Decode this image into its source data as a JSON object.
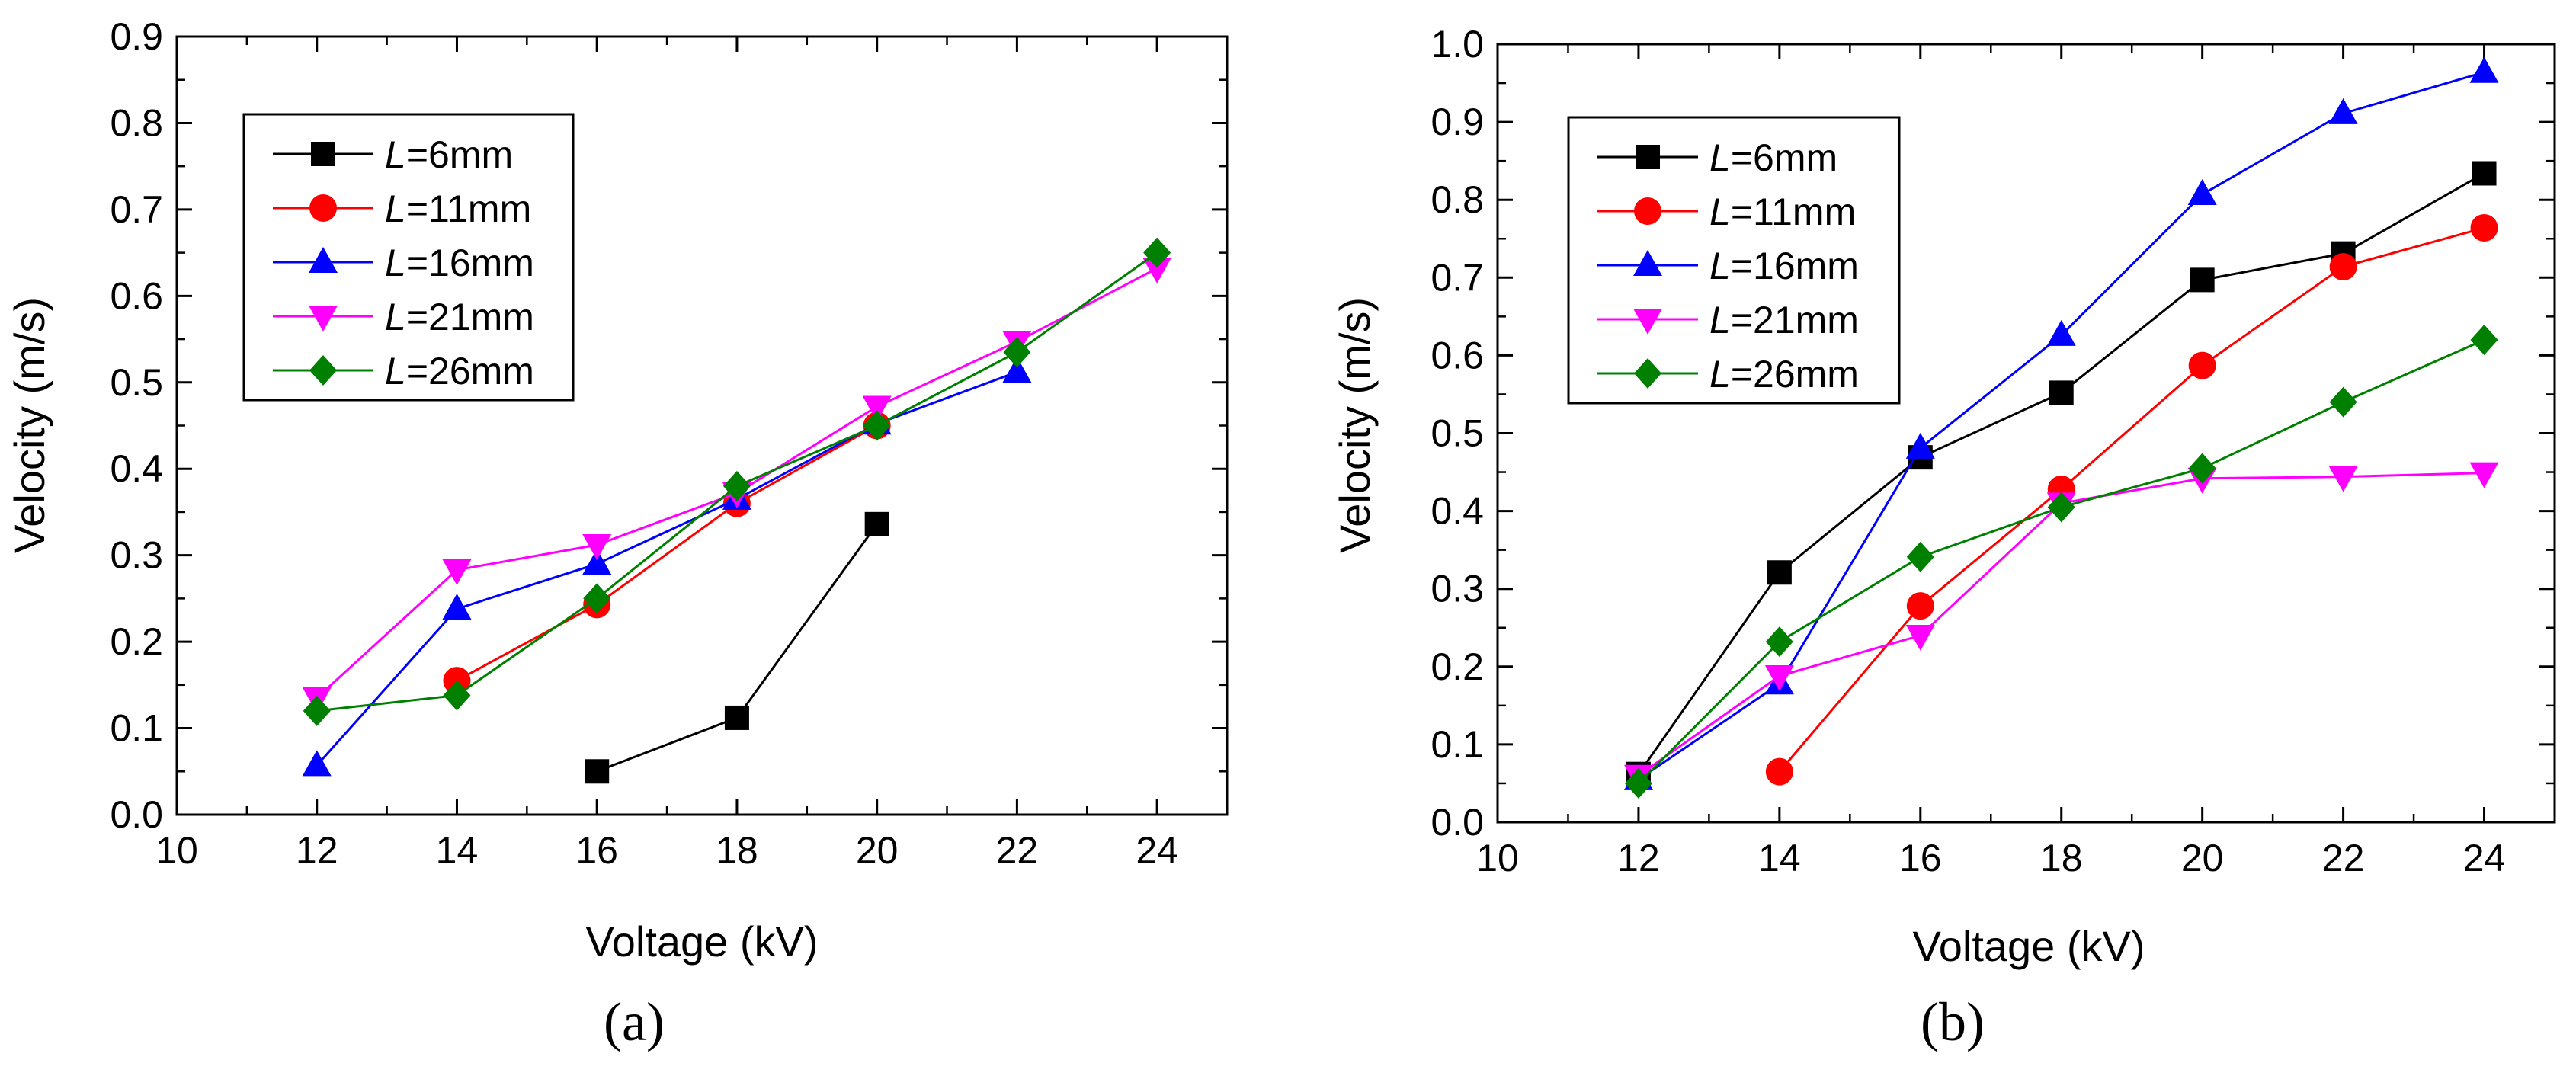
{
  "panels": [
    {
      "label": "(a)",
      "chart_data": {
        "type": "line",
        "xlabel": "Voltage (kV)",
        "ylabel": "Velocity (m/s)",
        "xlim": [
          10,
          25
        ],
        "ylim": [
          0,
          0.9
        ],
        "xticks": [
          "10",
          "12",
          "14",
          "16",
          "18",
          "20",
          "22",
          "24"
        ],
        "yticks": [
          "0.0",
          "0.1",
          "0.2",
          "0.3",
          "0.4",
          "0.5",
          "0.6",
          "0.7",
          "0.8",
          "0.9"
        ],
        "grid": false,
        "legend_position": "top-left",
        "series": [
          {
            "name": "L=6mm",
            "var": "L",
            "value": "=6mm",
            "color": "#000000",
            "marker": "square",
            "x": [
              16,
              18,
              20
            ],
            "y": [
              0.05,
              0.112,
              0.336
            ]
          },
          {
            "name": "L=11mm",
            "var": "L",
            "value": "=11mm",
            "color": "#ff0000",
            "marker": "circle",
            "x": [
              14,
              16,
              18,
              20
            ],
            "y": [
              0.155,
              0.243,
              0.36,
              0.45
            ]
          },
          {
            "name": "L=16mm",
            "var": "L",
            "value": "=16mm",
            "color": "#0000ff",
            "marker": "triangle-up",
            "x": [
              12,
              14,
              16,
              18,
              20,
              22
            ],
            "y": [
              0.057,
              0.238,
              0.29,
              0.365,
              0.452,
              0.512
            ]
          },
          {
            "name": "L=21mm",
            "var": "L",
            "value": "=21mm",
            "color": "#ff00ff",
            "marker": "triangle-down",
            "x": [
              12,
              14,
              16,
              18,
              20,
              22,
              24
            ],
            "y": [
              0.135,
              0.283,
              0.312,
              0.372,
              0.472,
              0.547,
              0.632
            ]
          },
          {
            "name": "L=26mm",
            "var": "L",
            "value": "=26mm",
            "color": "#008000",
            "marker": "diamond",
            "x": [
              12,
              14,
              16,
              18,
              20,
              22,
              24
            ],
            "y": [
              0.12,
              0.138,
              0.25,
              0.38,
              0.45,
              0.535,
              0.65
            ]
          }
        ]
      }
    },
    {
      "label": "(b)",
      "chart_data": {
        "type": "line",
        "xlabel": "Voltage (kV)",
        "ylabel": "Velocity (m/s)",
        "xlim": [
          10,
          25
        ],
        "ylim": [
          0,
          1.0
        ],
        "xticks": [
          "10",
          "12",
          "14",
          "16",
          "18",
          "20",
          "22",
          "24"
        ],
        "yticks": [
          "0.0",
          "0.1",
          "0.2",
          "0.3",
          "0.4",
          "0.5",
          "0.6",
          "0.7",
          "0.8",
          "0.9",
          "1.0"
        ],
        "grid": false,
        "legend_position": "top-left",
        "series": [
          {
            "name": "L=6mm",
            "var": "L",
            "value": "=6mm",
            "color": "#000000",
            "marker": "square",
            "x": [
              12,
              14,
              16,
              18,
              20,
              22,
              24
            ],
            "y": [
              0.062,
              0.321,
              0.469,
              0.552,
              0.697,
              0.731,
              0.834
            ]
          },
          {
            "name": "L=11mm",
            "var": "L",
            "value": "=11mm",
            "color": "#ff0000",
            "marker": "circle",
            "x": [
              14,
              16,
              18,
              20,
              22,
              24
            ],
            "y": [
              0.065,
              0.278,
              0.428,
              0.587,
              0.714,
              0.764
            ]
          },
          {
            "name": "L=16mm",
            "var": "L",
            "value": "=16mm",
            "color": "#0000ff",
            "marker": "triangle-up",
            "x": [
              12,
              14,
              16,
              18,
              20,
              22,
              24
            ],
            "y": [
              0.055,
              0.178,
              0.481,
              0.626,
              0.807,
              0.911,
              0.964
            ]
          },
          {
            "name": "L=21mm",
            "var": "L",
            "value": "=21mm",
            "color": "#ff00ff",
            "marker": "triangle-down",
            "x": [
              12,
              14,
              16,
              18,
              20,
              22,
              24
            ],
            "y": [
              0.06,
              0.188,
              0.24,
              0.41,
              0.442,
              0.444,
              0.449
            ]
          },
          {
            "name": "L=26mm",
            "var": "L",
            "value": "=26mm",
            "color": "#008000",
            "marker": "diamond",
            "x": [
              12,
              14,
              16,
              18,
              20,
              22,
              24
            ],
            "y": [
              0.05,
              0.232,
              0.341,
              0.405,
              0.455,
              0.54,
              0.62
            ]
          }
        ]
      }
    }
  ]
}
